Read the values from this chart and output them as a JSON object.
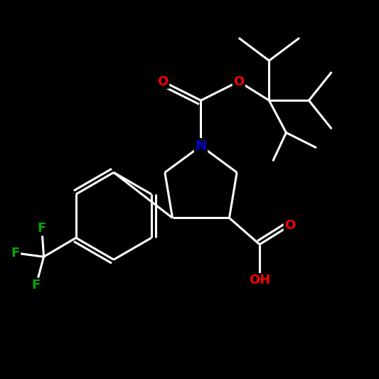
{
  "background_color": "#000000",
  "bond_color": "#ffffff",
  "atom_colors": {
    "O": "#ff0000",
    "N": "#0000cc",
    "F": "#00aa00",
    "C": "#ffffff",
    "H": "#ffffff"
  },
  "font_size": 13,
  "bond_width": 2.2,
  "figsize": [
    5.33,
    5.33
  ],
  "dpi": 100
}
